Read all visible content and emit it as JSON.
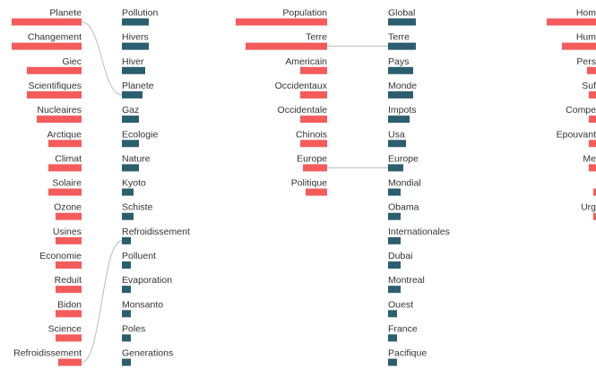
{
  "chart_data": {
    "type": "bar",
    "colors": {
      "left": "#f45b5b",
      "right": "#2b5f70",
      "connector": "#bbbbbb"
    },
    "panels": [
      {
        "left": [
          {
            "label": "Planete",
            "value": 78
          },
          {
            "label": "Changement",
            "value": 78
          },
          {
            "label": "Giec",
            "value": 61
          },
          {
            "label": "Scientifiques",
            "value": 61
          },
          {
            "label": "Nucleaires",
            "value": 50
          },
          {
            "label": "Arctique",
            "value": 37
          },
          {
            "label": "Climat",
            "value": 37
          },
          {
            "label": "Solaire",
            "value": 37
          },
          {
            "label": "Ozone",
            "value": 29
          },
          {
            "label": "Usines",
            "value": 29
          },
          {
            "label": "Economie",
            "value": 29
          },
          {
            "label": "Reduit",
            "value": 29
          },
          {
            "label": "Bidon",
            "value": 29
          },
          {
            "label": "Science",
            "value": 29
          },
          {
            "label": "Refroidissement",
            "value": 26
          }
        ],
        "right": [
          {
            "label": "Pollution",
            "value": 30
          },
          {
            "label": "Hivers",
            "value": 30
          },
          {
            "label": "Hiver",
            "value": 26
          },
          {
            "label": "Planete",
            "value": 23
          },
          {
            "label": "Gaz",
            "value": 19
          },
          {
            "label": "Ecologie",
            "value": 19
          },
          {
            "label": "Nature",
            "value": 19
          },
          {
            "label": "Kyoto",
            "value": 13
          },
          {
            "label": "Schiste",
            "value": 13
          },
          {
            "label": "Refroidissement",
            "value": 10
          },
          {
            "label": "Polluent",
            "value": 10
          },
          {
            "label": "Evaporation",
            "value": 10
          },
          {
            "label": "Monsanto",
            "value": 10
          },
          {
            "label": "Poles",
            "value": 10
          },
          {
            "label": "Generations",
            "value": 10
          }
        ],
        "links": [
          [
            "Planete",
            "Planete"
          ],
          [
            "Refroidissement",
            "Refroidissement"
          ]
        ]
      },
      {
        "left": [
          {
            "label": "Population",
            "value": 102
          },
          {
            "label": "Terre",
            "value": 91
          },
          {
            "label": "Americain",
            "value": 30
          },
          {
            "label": "Occidentaux",
            "value": 30
          },
          {
            "label": "Occidentale",
            "value": 30
          },
          {
            "label": "Chinois",
            "value": 30
          },
          {
            "label": "Europe",
            "value": 27
          },
          {
            "label": "Politique",
            "value": 24
          }
        ],
        "right": [
          {
            "label": "Global",
            "value": 31
          },
          {
            "label": "Terre",
            "value": 31
          },
          {
            "label": "Pays",
            "value": 28
          },
          {
            "label": "Monde",
            "value": 28
          },
          {
            "label": "Impots",
            "value": 24
          },
          {
            "label": "Usa",
            "value": 20
          },
          {
            "label": "Europe",
            "value": 17
          },
          {
            "label": "Mondial",
            "value": 14
          },
          {
            "label": "Obama",
            "value": 14
          },
          {
            "label": "Internationales",
            "value": 14
          },
          {
            "label": "Dubai",
            "value": 14
          },
          {
            "label": "Montreal",
            "value": 14
          },
          {
            "label": "Ouest",
            "value": 10
          },
          {
            "label": "France",
            "value": 10
          },
          {
            "label": "Pacifique",
            "value": 10
          }
        ],
        "links": [
          [
            "Terre",
            "Terre"
          ],
          [
            "Europe",
            "Europe"
          ]
        ]
      },
      {
        "left": [
          {
            "label": "Hom",
            "value": 55
          },
          {
            "label": "Hum",
            "value": 38
          },
          {
            "label": "Pers",
            "value": 10
          },
          {
            "label": "Suf",
            "value": 8
          },
          {
            "label": "Compe",
            "value": 8
          },
          {
            "label": "Epouvant",
            "value": 8
          },
          {
            "label": "Me",
            "value": 8
          },
          {
            "label": "",
            "value": 3
          },
          {
            "label": "Urg",
            "value": 3
          }
        ],
        "right": [],
        "links": []
      }
    ]
  }
}
